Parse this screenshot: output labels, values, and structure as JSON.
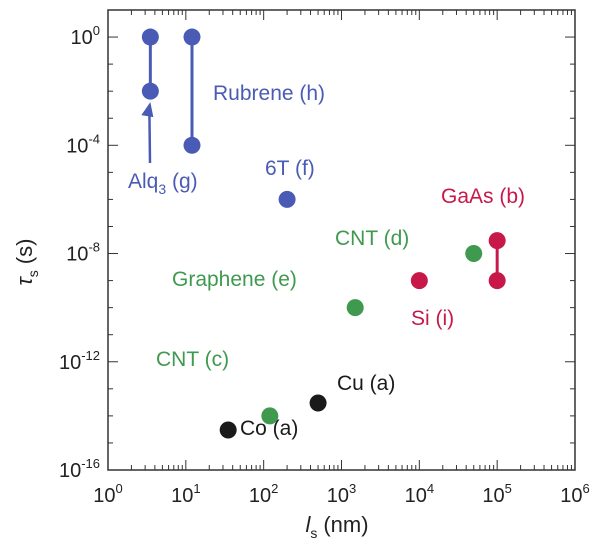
{
  "chart_data": {
    "type": "scatter",
    "title": "",
    "xlabel": {
      "main": "l",
      "sub": "s",
      "unit": "(nm)"
    },
    "ylabel": {
      "main": "τ",
      "sub": "s",
      "unit": "(s)"
    },
    "xscale": "log",
    "yscale": "log",
    "xlim": [
      1,
      1000000
    ],
    "ylim": [
      1e-16,
      10
    ],
    "x_ticks": [
      {
        "base": "10",
        "exp": "0",
        "value": 1
      },
      {
        "base": "10",
        "exp": "1",
        "value": 10
      },
      {
        "base": "10",
        "exp": "2",
        "value": 100
      },
      {
        "base": "10",
        "exp": "3",
        "value": 1000
      },
      {
        "base": "10",
        "exp": "4",
        "value": 10000
      },
      {
        "base": "10",
        "exp": "5",
        "value": 100000
      },
      {
        "base": "10",
        "exp": "6",
        "value": 1000000
      }
    ],
    "y_ticks": [
      {
        "base": "10",
        "exp": "-16",
        "value": 1e-16
      },
      {
        "base": "10",
        "exp": "-12",
        "value": 1e-12
      },
      {
        "base": "10",
        "exp": "-8",
        "value": 1e-08
      },
      {
        "base": "10",
        "exp": "-4",
        "value": 0.0001
      },
      {
        "base": "10",
        "exp": "0",
        "value": 1
      }
    ],
    "grid": false,
    "colors": {
      "blue": "#4a5bb5",
      "green": "#3f9a4f",
      "red": "#c8184a",
      "black": "#1a1a1a"
    },
    "series": [
      {
        "color": "blue",
        "points": [
          {
            "x": 3.5,
            "y": 1
          },
          {
            "x": 3.5,
            "y": 0.01
          }
        ]
      },
      {
        "color": "blue",
        "points": [
          {
            "x": 12,
            "y": 1
          },
          {
            "x": 12,
            "y": 0.0001
          }
        ]
      },
      {
        "color": "blue",
        "points": [
          {
            "x": 200,
            "y": 1e-06
          }
        ]
      },
      {
        "color": "green",
        "points": [
          {
            "x": 1500,
            "y": 1e-10
          }
        ]
      },
      {
        "color": "green",
        "points": [
          {
            "x": 50000,
            "y": 1e-08
          }
        ]
      },
      {
        "color": "green",
        "points": [
          {
            "x": 120,
            "y": 1e-14
          }
        ]
      },
      {
        "color": "red",
        "points": [
          {
            "x": 10000,
            "y": 1e-09
          }
        ]
      },
      {
        "color": "red",
        "points": [
          {
            "x": 100000,
            "y": 3e-08
          },
          {
            "x": 100000,
            "y": 1e-09
          }
        ]
      },
      {
        "color": "black",
        "points": [
          {
            "x": 35,
            "y": 3e-15
          }
        ]
      },
      {
        "color": "black",
        "points": [
          {
            "x": 500,
            "y": 3e-14
          }
        ]
      }
    ],
    "annotations": [
      {
        "text": "Rubrene (h)",
        "color": "blue"
      },
      {
        "text": "Alq",
        "sub": "3",
        "tail": " (g)",
        "color": "blue"
      },
      {
        "text": "6T (f)",
        "color": "blue"
      },
      {
        "text": "CNT (d)",
        "color": "green"
      },
      {
        "text": "Graphene (e)",
        "color": "green"
      },
      {
        "text": "CNT (c)",
        "color": "green"
      },
      {
        "text": "GaAs (b)",
        "color": "red"
      },
      {
        "text": "Si (i)",
        "color": "red"
      },
      {
        "text": "Cu (a)",
        "color": "black"
      },
      {
        "text": "Co (a)",
        "color": "black"
      }
    ]
  }
}
